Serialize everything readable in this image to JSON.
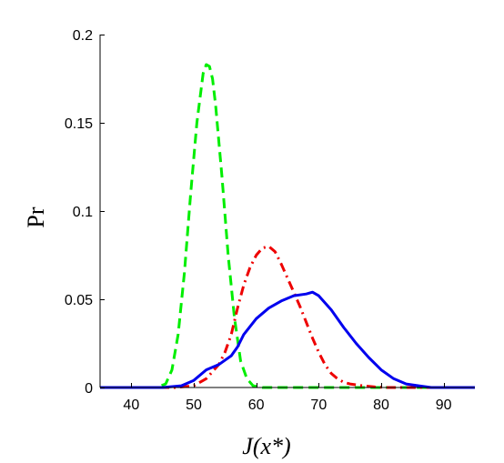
{
  "chart_data": {
    "type": "line",
    "title": "",
    "xlabel": "J(x*)",
    "ylabel": "Pr",
    "xlim": [
      35,
      95
    ],
    "ylim": [
      0,
      0.2
    ],
    "xticks": [
      40,
      50,
      60,
      70,
      80,
      90
    ],
    "yticks": [
      0,
      0.05,
      0.1,
      0.15,
      0.2
    ],
    "xtick_labels": [
      "40",
      "50",
      "60",
      "70",
      "80",
      "90"
    ],
    "ytick_labels": [
      "0",
      "0.05",
      "0.1",
      "0.15",
      "0.2"
    ],
    "grid": false,
    "legend": "none",
    "series": [
      {
        "color": "#00ee00",
        "line_style": "dashed",
        "x": [
          35,
          44,
          45.5,
          46.5,
          47.5,
          48.5,
          49.5,
          50.5,
          51.5,
          52.0,
          52.5,
          53.0,
          53.5,
          54.5,
          55.5,
          56.5,
          57.5,
          58.5,
          59.5,
          61,
          95
        ],
        "y": [
          0,
          0,
          0.002,
          0.01,
          0.03,
          0.065,
          0.11,
          0.15,
          0.178,
          0.183,
          0.182,
          0.175,
          0.16,
          0.12,
          0.075,
          0.04,
          0.015,
          0.005,
          0.001,
          0,
          0
        ]
      },
      {
        "color": "#ee0000",
        "line_style": "dash-dot",
        "x": [
          35,
          47,
          50,
          52,
          54,
          55,
          56,
          57,
          58,
          59,
          60,
          61,
          62,
          63,
          64,
          65,
          66,
          67,
          68,
          69,
          70,
          71,
          72,
          73,
          74,
          75,
          77,
          79,
          81,
          95
        ],
        "y": [
          0,
          0,
          0.001,
          0.005,
          0.013,
          0.02,
          0.03,
          0.045,
          0.058,
          0.068,
          0.075,
          0.079,
          0.08,
          0.077,
          0.07,
          0.062,
          0.054,
          0.046,
          0.037,
          0.028,
          0.02,
          0.013,
          0.008,
          0.005,
          0.003,
          0.002,
          0.001,
          0.0003,
          0,
          0
        ]
      },
      {
        "color": "#0000ee",
        "line_style": "solid",
        "x": [
          35,
          45,
          48,
          50,
          52,
          54,
          56,
          57,
          58,
          60,
          62,
          64,
          66,
          68,
          69,
          70,
          72,
          74,
          76,
          78,
          80,
          82,
          84,
          86,
          88,
          95
        ],
        "y": [
          0,
          0,
          0.001,
          0.004,
          0.01,
          0.013,
          0.018,
          0.023,
          0.03,
          0.039,
          0.045,
          0.049,
          0.052,
          0.053,
          0.054,
          0.052,
          0.044,
          0.034,
          0.025,
          0.017,
          0.01,
          0.005,
          0.002,
          0.001,
          0,
          0
        ]
      }
    ]
  }
}
